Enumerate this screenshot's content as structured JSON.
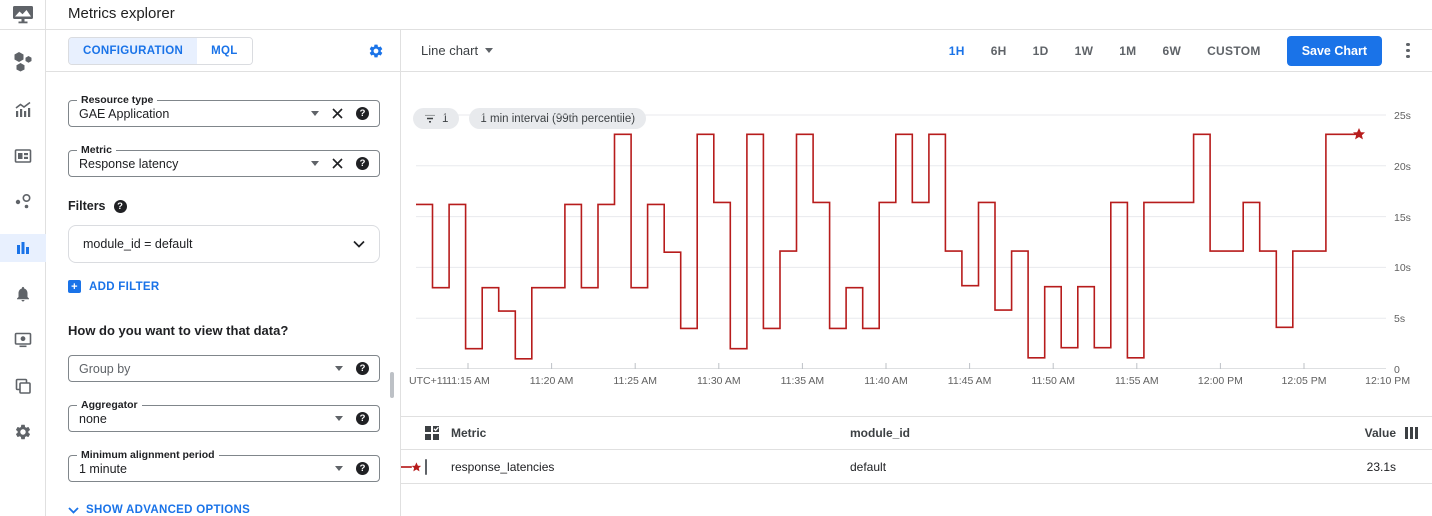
{
  "header": {
    "title": "Metrics explorer"
  },
  "sidebar": {
    "items": [
      {
        "name": "overview"
      },
      {
        "name": "metrics"
      },
      {
        "name": "dashboards"
      },
      {
        "name": "services"
      },
      {
        "name": "metrics-explorer",
        "selected": true
      },
      {
        "name": "alerting"
      },
      {
        "name": "uptime-checks"
      },
      {
        "name": "groups"
      },
      {
        "name": "settings"
      }
    ]
  },
  "config": {
    "tabs": {
      "configuration": "CONFIGURATION",
      "mql": "MQL"
    },
    "resource_type": {
      "label": "Resource type",
      "value": "GAE Application"
    },
    "metric": {
      "label": "Metric",
      "value": "Response latency"
    },
    "filters_label": "Filters",
    "filter_value": "module_id = default",
    "add_filter": "ADD FILTER",
    "question": "How do you want to view that data?",
    "group_by": {
      "placeholder": "Group by"
    },
    "aggregator": {
      "label": "Aggregator",
      "value": "none"
    },
    "min_alignment": {
      "label": "Minimum alignment period",
      "value": "1 minute"
    },
    "show_advanced": "SHOW ADVANCED OPTIONS"
  },
  "chart_header": {
    "chart_type": "Line chart",
    "ranges": [
      "1H",
      "6H",
      "1D",
      "1W",
      "1M",
      "6W",
      "CUSTOM"
    ],
    "selected_range": "1H",
    "save_button": "Save Chart"
  },
  "chips": {
    "filter_count": "1",
    "interval": "1 min interval (99th percentile)"
  },
  "chart_data": {
    "type": "line",
    "subtype": "step-after",
    "line_color": "#b71c1c",
    "grid": true,
    "ylim": [
      0,
      25
    ],
    "y_ticks": [
      {
        "v": 0,
        "label": "0"
      },
      {
        "v": 5,
        "label": "5s"
      },
      {
        "v": 10,
        "label": "10s"
      },
      {
        "v": 15,
        "label": "15s"
      },
      {
        "v": 20,
        "label": "20s"
      },
      {
        "v": 25,
        "label": "25s"
      }
    ],
    "x_corner_label": "UTC+11",
    "x_labels": [
      "11:15 AM",
      "11:20 AM",
      "11:25 AM",
      "11:30 AM",
      "11:35 AM",
      "11:40 AM",
      "11:45 AM",
      "11:50 AM",
      "11:55 AM",
      "12:00 PM",
      "12:05 PM",
      "12:10 PM"
    ],
    "series": [
      {
        "name": "response_latencies",
        "module_id": "default",
        "start_time": "11:12 AM",
        "interval_minutes": 1,
        "unit": "s",
        "end_marker": "star",
        "values": [
          16.2,
          8,
          16.2,
          2,
          8,
          5.7,
          1,
          8,
          8,
          16.2,
          8,
          16.2,
          23.1,
          8,
          16.2,
          11.5,
          4,
          23.1,
          16.4,
          2,
          23.1,
          4,
          11.6,
          23.1,
          16.4,
          4,
          8,
          4,
          16.4,
          23.1,
          16.4,
          23.1,
          11.6,
          8.2,
          16.4,
          5.8,
          11.6,
          1.1,
          8.1,
          2.1,
          8.1,
          2.1,
          16.4,
          1.1,
          16.4,
          16.4,
          16.4,
          23.1,
          11.6,
          11.6,
          16.4,
          11.6,
          4.1,
          11.6,
          11.6,
          23.1,
          23.1,
          23.1
        ]
      }
    ]
  },
  "table": {
    "columns": {
      "metric": "Metric",
      "module_id": "module_id",
      "value": "Value"
    },
    "rows": [
      {
        "metric": "response_latencies",
        "module_id": "default",
        "value": "23.1s"
      }
    ]
  }
}
